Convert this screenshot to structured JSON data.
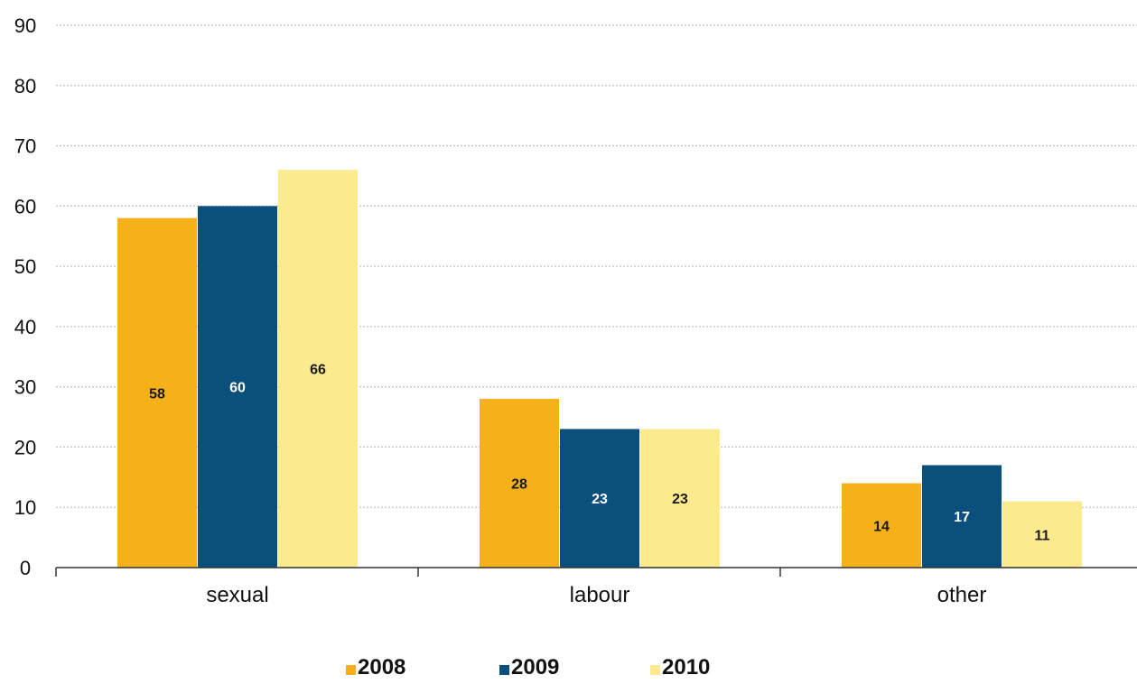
{
  "chart_data": {
    "type": "bar",
    "categories": [
      "sexual",
      "labour",
      "other"
    ],
    "series": [
      {
        "name": "2008",
        "color": "#F5B01A",
        "label_color": "#1a1a1a",
        "values": [
          58,
          28,
          14
        ]
      },
      {
        "name": "2009",
        "color": "#0B4F7C",
        "label_color": "#ffffff",
        "values": [
          60,
          23,
          17
        ]
      },
      {
        "name": "2010",
        "color": "#FBEA8E",
        "label_color": "#1a1a1a",
        "values": [
          66,
          23,
          11
        ]
      }
    ],
    "data_labels": [
      [
        "58",
        "28",
        "14"
      ],
      [
        "60",
        "23",
        "17"
      ],
      [
        "66",
        "23",
        "11"
      ]
    ],
    "y_ticks": [
      "0",
      "10",
      "20",
      "30",
      "40",
      "50",
      "60",
      "70",
      "80",
      "90"
    ],
    "ylim": [
      0,
      90
    ],
    "grid": true,
    "legend_position": "bottom"
  }
}
